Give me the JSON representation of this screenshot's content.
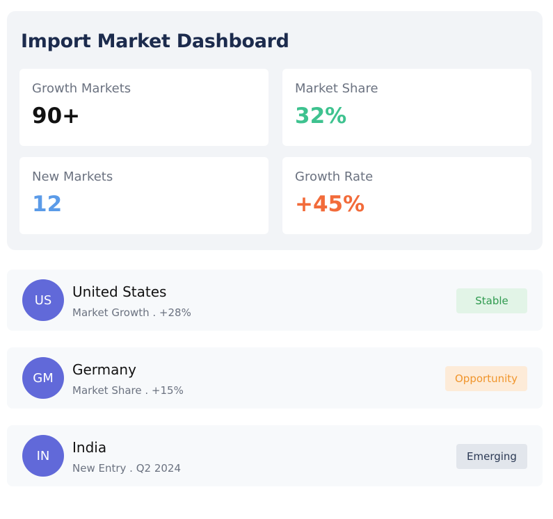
{
  "header": {
    "title": "Import Market Dashboard"
  },
  "stats": [
    {
      "label": "Growth Markets",
      "value": "90+"
    },
    {
      "label": "Market Share",
      "value": "32%"
    },
    {
      "label": "New Markets",
      "value": "12"
    },
    {
      "label": "Growth Rate",
      "value": "+45%"
    }
  ],
  "markets": [
    {
      "initials": "US",
      "name": "United States",
      "detail": "Market Growth . +28%",
      "status": "Stable"
    },
    {
      "initials": "GM",
      "name": "Germany",
      "detail": "Market Share . +15%",
      "status": "Opportunity"
    },
    {
      "initials": "IN",
      "name": "India",
      "detail": "New Entry . Q2 2024",
      "status": "Emerging"
    }
  ]
}
